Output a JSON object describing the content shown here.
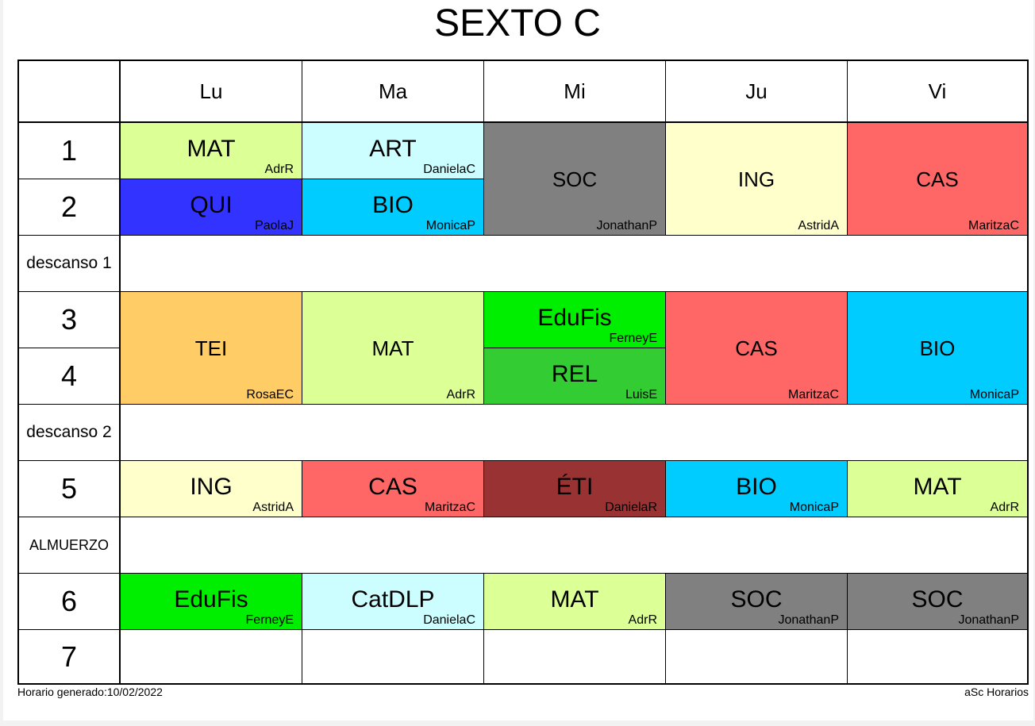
{
  "title": "SEXTO C",
  "days": [
    "Lu",
    "Ma",
    "Mi",
    "Ju",
    "Vi"
  ],
  "periods": {
    "p1": "1",
    "p2": "2",
    "b1": "descanso 1",
    "p3": "3",
    "p4": "4",
    "b2": "descanso 2",
    "p5": "5",
    "lunch": "ALMUERZO",
    "p6": "6",
    "p7": "7"
  },
  "colors": {
    "mat": "#dcff96",
    "art": "#ccfdff",
    "soc": "#808080",
    "ing": "#ffffcc",
    "cas": "#ff6666",
    "qui": "#3333ff",
    "bio": "#00ccff",
    "tei": "#ffcc66",
    "edufis": "#00ee00",
    "rel": "#33cc33",
    "eti": "#993333",
    "catdlp": "#ccfdff"
  },
  "lessons": {
    "lu1": {
      "subject": "MAT",
      "teacher": "AdrR"
    },
    "lu2": {
      "subject": "QUI",
      "teacher": "PaolaJ"
    },
    "lu34": {
      "subject": "TEI",
      "teacher": "RosaEC"
    },
    "lu5": {
      "subject": "ING",
      "teacher": "AstridA"
    },
    "lu6": {
      "subject": "EduFis",
      "teacher": "FerneyE"
    },
    "ma1": {
      "subject": "ART",
      "teacher": "DanielaC"
    },
    "ma2": {
      "subject": "BIO",
      "teacher": "MonicaP"
    },
    "ma34": {
      "subject": "MAT",
      "teacher": "AdrR"
    },
    "ma5": {
      "subject": "CAS",
      "teacher": "MaritzaC"
    },
    "ma6": {
      "subject": "CatDLP",
      "teacher": "DanielaC"
    },
    "mi12": {
      "subject": "SOC",
      "teacher": "JonathanP"
    },
    "mi3": {
      "subject": "EduFis",
      "teacher": "FerneyE"
    },
    "mi4": {
      "subject": "REL",
      "teacher": "LuisE"
    },
    "mi5": {
      "subject": "ÉTI",
      "teacher": "DanielaR"
    },
    "mi6": {
      "subject": "MAT",
      "teacher": "AdrR"
    },
    "ju12": {
      "subject": "ING",
      "teacher": "AstridA"
    },
    "ju34": {
      "subject": "CAS",
      "teacher": "MaritzaC"
    },
    "ju5": {
      "subject": "BIO",
      "teacher": "MonicaP"
    },
    "ju6": {
      "subject": "SOC",
      "teacher": "JonathanP"
    },
    "vi12": {
      "subject": "CAS",
      "teacher": "MaritzaC"
    },
    "vi34": {
      "subject": "BIO",
      "teacher": "MonicaP"
    },
    "vi5": {
      "subject": "MAT",
      "teacher": "AdrR"
    },
    "vi6": {
      "subject": "SOC",
      "teacher": "JonathanP"
    }
  },
  "footer": {
    "generated": "Horario generado:10/02/2022",
    "brand": "aSc Horarios"
  }
}
